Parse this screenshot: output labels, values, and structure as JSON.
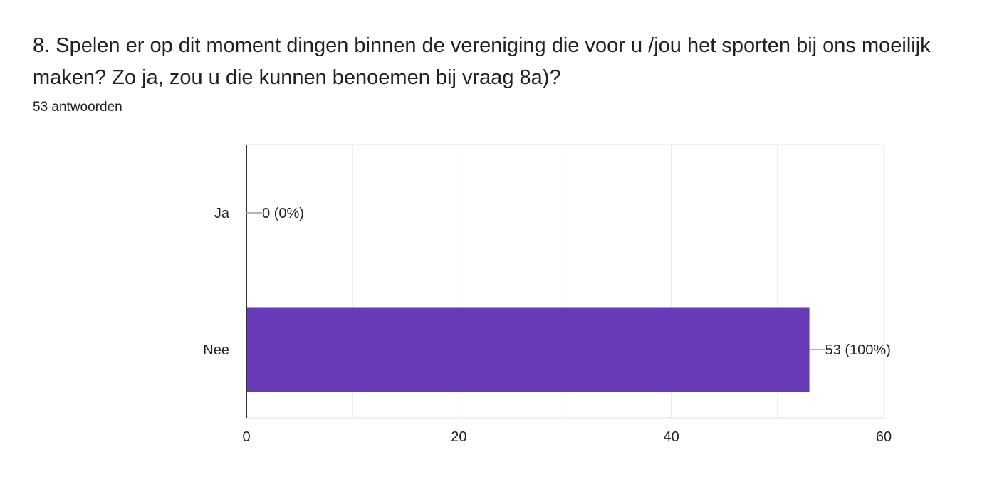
{
  "question": {
    "title": "8. Spelen er op dit moment dingen binnen de vereniging die voor u /jou het sporten bij ons moeilijk maken? Zo ja, zou u die kunnen benoemen bij vraag 8a)?",
    "response_count": "53 antwoorden"
  },
  "colors": {
    "bar": "#673ab7",
    "grid": "#e8e8e8",
    "axis": "#333333",
    "text": "#202124",
    "leader": "#9e9e9e"
  },
  "chart_data": {
    "type": "bar",
    "orientation": "horizontal",
    "title": "",
    "xlabel": "",
    "ylabel": "",
    "categories": [
      "Ja",
      "Nee"
    ],
    "values": [
      0,
      53
    ],
    "data_labels": [
      "0 (0%)",
      "53 (100%)"
    ],
    "xlim": [
      0,
      60
    ],
    "x_ticks": [
      0,
      20,
      40,
      60
    ],
    "grid": true
  }
}
